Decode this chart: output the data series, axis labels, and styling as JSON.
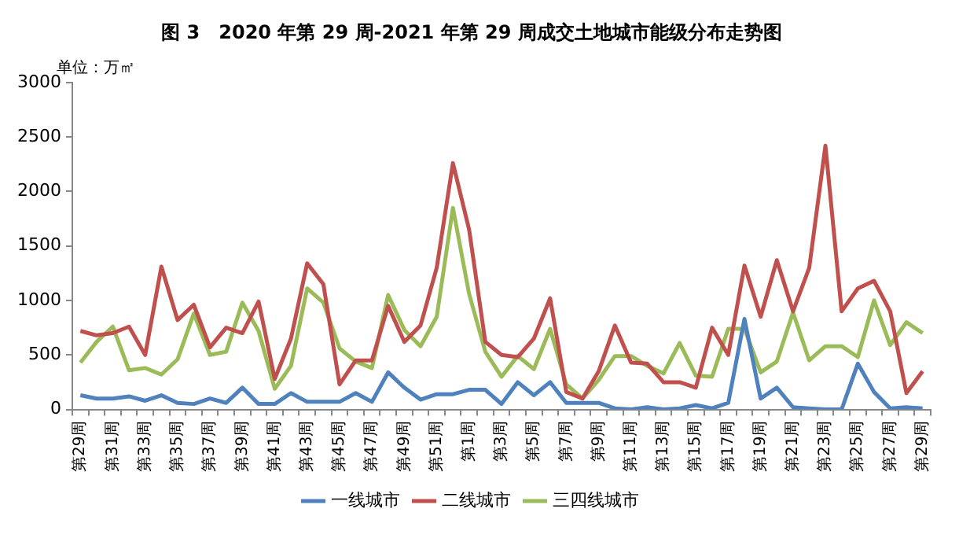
{
  "chart_data": {
    "type": "line",
    "title": "图 3　2020 年第 29 周-2021 年第 29 周成交土地城市能级分布走势图",
    "annotations": [
      "单位：万㎡"
    ],
    "categories": [
      "第29周",
      null,
      "第31周",
      null,
      "第33周",
      null,
      "第35周",
      null,
      "第37周",
      null,
      "第39周",
      null,
      "第41周",
      null,
      "第43周",
      null,
      "第45周",
      null,
      "第47周",
      null,
      "第49周",
      null,
      "第51周",
      null,
      "第1周",
      null,
      "第3周",
      null,
      "第5周",
      null,
      "第7周",
      null,
      "第9周",
      null,
      "第11周",
      null,
      "第13周",
      null,
      "第15周",
      null,
      "第17周",
      null,
      "第19周",
      null,
      "第21周",
      null,
      "第23周",
      null,
      "第25周",
      null,
      "第27周",
      null,
      "第29周"
    ],
    "series": [
      {
        "name": "一线城市",
        "color": "#4f81bd",
        "values": [
          130,
          100,
          100,
          120,
          80,
          130,
          60,
          50,
          100,
          60,
          200,
          50,
          50,
          150,
          70,
          70,
          70,
          150,
          70,
          340,
          200,
          90,
          140,
          140,
          180,
          180,
          50,
          250,
          130,
          250,
          60,
          60,
          60,
          10,
          0,
          20,
          0,
          10,
          40,
          10,
          60,
          830,
          100,
          200,
          20,
          10,
          0,
          0,
          420,
          160,
          10,
          20,
          10
        ]
      },
      {
        "name": "二线城市",
        "color": "#c0504d",
        "values": [
          720,
          680,
          700,
          760,
          500,
          1310,
          820,
          960,
          570,
          750,
          700,
          990,
          280,
          650,
          1340,
          1150,
          230,
          450,
          450,
          950,
          620,
          770,
          1300,
          2260,
          1650,
          620,
          500,
          480,
          650,
          1020,
          160,
          100,
          350,
          770,
          430,
          420,
          250,
          250,
          200,
          750,
          500,
          1320,
          850,
          1370,
          900,
          1300,
          2420,
          900,
          1110,
          1180,
          900,
          150,
          350
        ]
      },
      {
        "name": "三四线城市",
        "color": "#9bbb59",
        "values": [
          430,
          620,
          760,
          360,
          380,
          320,
          460,
          880,
          500,
          530,
          980,
          720,
          190,
          400,
          1110,
          980,
          560,
          440,
          380,
          1050,
          730,
          580,
          850,
          1850,
          1060,
          530,
          300,
          490,
          370,
          740,
          230,
          100,
          270,
          490,
          490,
          400,
          330,
          610,
          310,
          300,
          740,
          740,
          340,
          440,
          890,
          450,
          580,
          580,
          480,
          1000,
          590,
          800,
          700
        ]
      }
    ],
    "ylim": [
      0,
      3000
    ],
    "yticks": [
      0,
      500,
      1000,
      1500,
      2000,
      2500,
      3000
    ],
    "grid": false,
    "legend": "bottom",
    "marker": "none",
    "line_style": "solid"
  }
}
